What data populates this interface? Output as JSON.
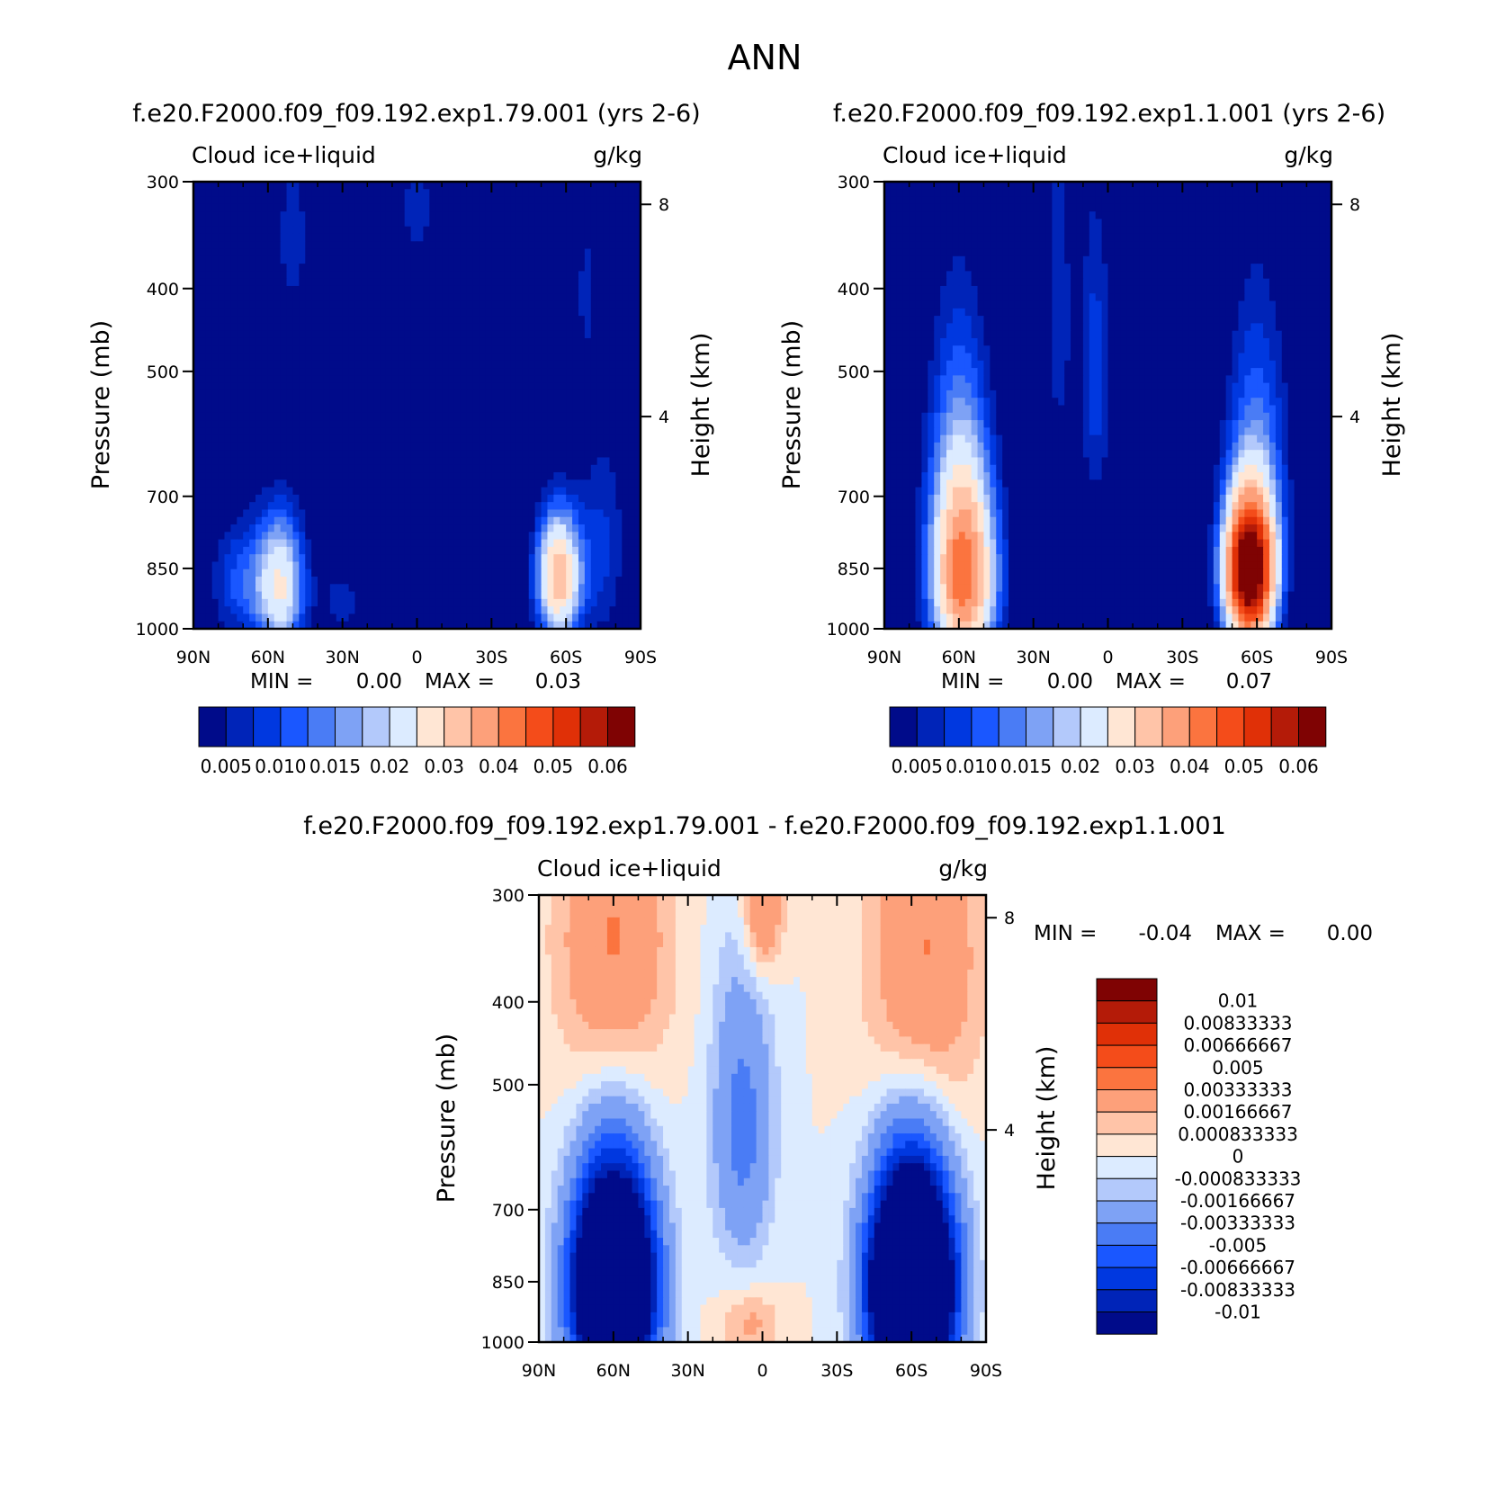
{
  "figure": {
    "title": "ANN",
    "colors": {
      "seq": [
        "#000b8a",
        "#0024b8",
        "#0038e0",
        "#1a57ff",
        "#4a7cf5",
        "#7ea2f5",
        "#b3c9fb",
        "#dcebff",
        "#ffe6d4",
        "#ffc4a8",
        "#fda07a",
        "#fb743f",
        "#f44c1a",
        "#e03007",
        "#b41b08",
        "#7f0303"
      ],
      "div": [
        "#000b8a",
        "#0024b8",
        "#0038e0",
        "#1a57ff",
        "#4a7cf5",
        "#7ea2f5",
        "#b3c9fb",
        "#dcebff",
        "#ffe6d4",
        "#ffc4a8",
        "#fda07a",
        "#fb743f",
        "#f44c1a",
        "#e03007",
        "#b41b08",
        "#7f0303"
      ]
    }
  },
  "chart_data": [
    {
      "type": "heatmap",
      "title": "f.e20.F2000.f09_f09.192.exp1.79.001 (yrs 2-6)",
      "subtitle_left": "Cloud ice+liquid",
      "subtitle_right": "g/kg",
      "ylabel": "Pressure (mb)",
      "ylabel_right": "Height (km)",
      "x_ticks": [
        "90N",
        "60N",
        "30N",
        "0",
        "30S",
        "60S",
        "90S"
      ],
      "y_ticks": [
        "300",
        "400",
        "500",
        "700",
        "850",
        "1000"
      ],
      "y_ticks_right": [
        "8",
        "4"
      ],
      "stats": {
        "min_label": "MIN =",
        "min": "0.00",
        "max_label": "MAX =",
        "max": "0.03"
      },
      "colorbar_labels": [
        "0.005",
        "0.010",
        "0.015",
        "0.02",
        "0.03",
        "0.04",
        "0.05",
        "0.06"
      ],
      "features": [
        {
          "lat": 55,
          "p": 890,
          "amplitude": 0.025,
          "lat_width": 10,
          "p_width": 170
        },
        {
          "lat": 72,
          "p": 880,
          "amplitude": 0.01,
          "lat_width": 12,
          "p_width": 150
        },
        {
          "lat": 30,
          "p": 930,
          "amplitude": 0.006,
          "lat_width": 10,
          "p_width": 120
        },
        {
          "lat": -57,
          "p": 870,
          "amplitude": 0.034,
          "lat_width": 9,
          "p_width": 150
        },
        {
          "lat": -75,
          "p": 800,
          "amplitude": 0.008,
          "lat_width": 10,
          "p_width": 250
        },
        {
          "lat": 0,
          "p": 320,
          "amplitude": 0.006,
          "lat_width": 10,
          "p_width": 80
        },
        {
          "lat": 50,
          "p": 350,
          "amplitude": 0.006,
          "lat_width": 10,
          "p_width": 120
        },
        {
          "lat": -68,
          "p": 400,
          "amplitude": 0.006,
          "lat_width": 4,
          "p_width": 100
        }
      ]
    },
    {
      "type": "heatmap",
      "title": "f.e20.F2000.f09_f09.192.exp1.1.001 (yrs 2-6)",
      "subtitle_left": "Cloud ice+liquid",
      "subtitle_right": "g/kg",
      "ylabel": "Pressure (mb)",
      "ylabel_right": "Height (km)",
      "x_ticks": [
        "90N",
        "60N",
        "30N",
        "0",
        "30S",
        "60S",
        "90S"
      ],
      "y_ticks": [
        "300",
        "400",
        "500",
        "700",
        "850",
        "1000"
      ],
      "y_ticks_right": [
        "8",
        "4"
      ],
      "stats": {
        "min_label": "MIN =",
        "min": "0.00",
        "max_label": "MAX =",
        "max": "0.07"
      },
      "colorbar_labels": [
        "0.005",
        "0.010",
        "0.015",
        "0.02",
        "0.03",
        "0.04",
        "0.05",
        "0.06"
      ],
      "features": [
        {
          "lat": 58,
          "p": 880,
          "amplitude": 0.04,
          "lat_width": 13,
          "p_width": 230
        },
        {
          "lat": -57,
          "p": 860,
          "amplitude": 0.07,
          "lat_width": 10,
          "p_width": 170
        },
        {
          "lat": -60,
          "p": 620,
          "amplitude": 0.012,
          "lat_width": 13,
          "p_width": 260
        },
        {
          "lat": 60,
          "p": 620,
          "amplitude": 0.012,
          "lat_width": 13,
          "p_width": 260
        },
        {
          "lat": 5,
          "p": 500,
          "amplitude": 0.009,
          "lat_width": 7,
          "p_width": 230
        },
        {
          "lat": 20,
          "p": 420,
          "amplitude": 0.007,
          "lat_width": 6,
          "p_width": 220
        }
      ]
    },
    {
      "type": "heatmap",
      "title": "f.e20.F2000.f09_f09.192.exp1.79.001 - f.e20.F2000.f09_f09.192.exp1.1.001",
      "subtitle_left": "Cloud ice+liquid",
      "subtitle_right": "g/kg",
      "ylabel": "Pressure (mb)",
      "ylabel_right": "Height (km)",
      "x_ticks": [
        "90N",
        "60N",
        "30N",
        "0",
        "30S",
        "60S",
        "90S"
      ],
      "y_ticks": [
        "300",
        "400",
        "500",
        "700",
        "850",
        "1000"
      ],
      "y_ticks_right": [
        "8",
        "4"
      ],
      "stats": {
        "min_label": "MIN =",
        "min": "-0.04",
        "max_label": "MAX =",
        "max": "0.00"
      },
      "colorbar_labels": [
        "0.01",
        "0.00833333",
        "0.00666667",
        "0.005",
        "0.00333333",
        "0.00166667",
        "0.000833333",
        "0",
        "-0.000833333",
        "-0.00166667",
        "-0.00333333",
        "-0.005",
        "-0.00666667",
        "-0.00833333",
        "-0.01"
      ],
      "features": [
        {
          "lat": 60,
          "p": 860,
          "amplitude": -0.03,
          "lat_width": 15,
          "p_width": 220
        },
        {
          "lat": -60,
          "p": 860,
          "amplitude": -0.035,
          "lat_width": 15,
          "p_width": 220
        },
        {
          "lat": 60,
          "p": 340,
          "amplitude": 0.0035,
          "lat_width": 22,
          "p_width": 150
        },
        {
          "lat": -65,
          "p": 360,
          "amplitude": 0.0035,
          "lat_width": 22,
          "p_width": 170
        },
        {
          "lat": 0,
          "p": 310,
          "amplitude": 0.004,
          "lat_width": 8,
          "p_width": 60
        },
        {
          "lat": 8,
          "p": 560,
          "amplitude": -0.004,
          "lat_width": 12,
          "p_width": 220
        },
        {
          "lat": 5,
          "p": 950,
          "amplitude": 0.002,
          "lat_width": 12,
          "p_width": 80
        }
      ]
    }
  ]
}
